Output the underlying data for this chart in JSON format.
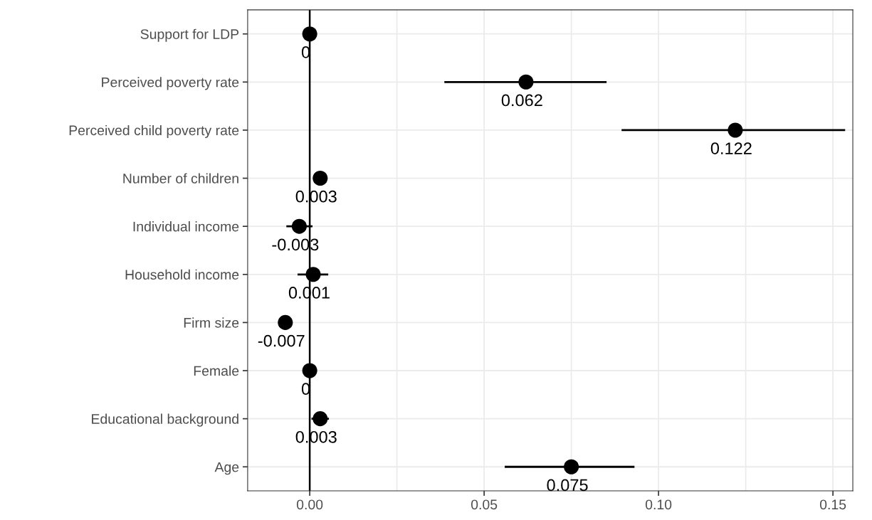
{
  "chart_data": {
    "type": "scatter",
    "orientation": "horizontal",
    "categories": [
      "Support for LDP",
      "Perceived poverty rate",
      "Perceived child poverty rate",
      "Number of children",
      "Individual income",
      "Household income",
      "Firm size",
      "Female",
      "Educational background",
      "Age"
    ],
    "series": [
      {
        "color": "#000000",
        "values": [
          0,
          0.062,
          0.122,
          0.003,
          -0.003,
          0.001,
          -0.007,
          0,
          0.003,
          0.075
        ],
        "errors": [
          null,
          [
            0.0386,
            0.0851
          ],
          [
            0.0894,
            0.1535
          ],
          null,
          [
            -0.0067,
            0.0008
          ],
          [
            -0.0035,
            0.0053
          ],
          null,
          null,
          [
            0.0005,
            0.0055
          ],
          [
            0.0559,
            0.0931
          ]
        ]
      }
    ],
    "xlim": [
      -0.0178,
      0.1557
    ],
    "xticks": [
      {
        "value": 0,
        "label": "0.00"
      },
      {
        "value": 0.025,
        "label": null
      },
      {
        "value": 0.05,
        "label": "0.05"
      },
      {
        "value": 0.075,
        "label": null
      },
      {
        "value": 0.1,
        "label": "0.10"
      },
      {
        "value": 0.125,
        "label": null
      },
      {
        "value": 0.15,
        "label": "0.15"
      }
    ],
    "ref_lines": [
      {
        "axis": "x",
        "value": 0,
        "color": "#000000",
        "line_style": "solid"
      }
    ],
    "grid": true,
    "marker": "circle",
    "data_labels": true
  }
}
